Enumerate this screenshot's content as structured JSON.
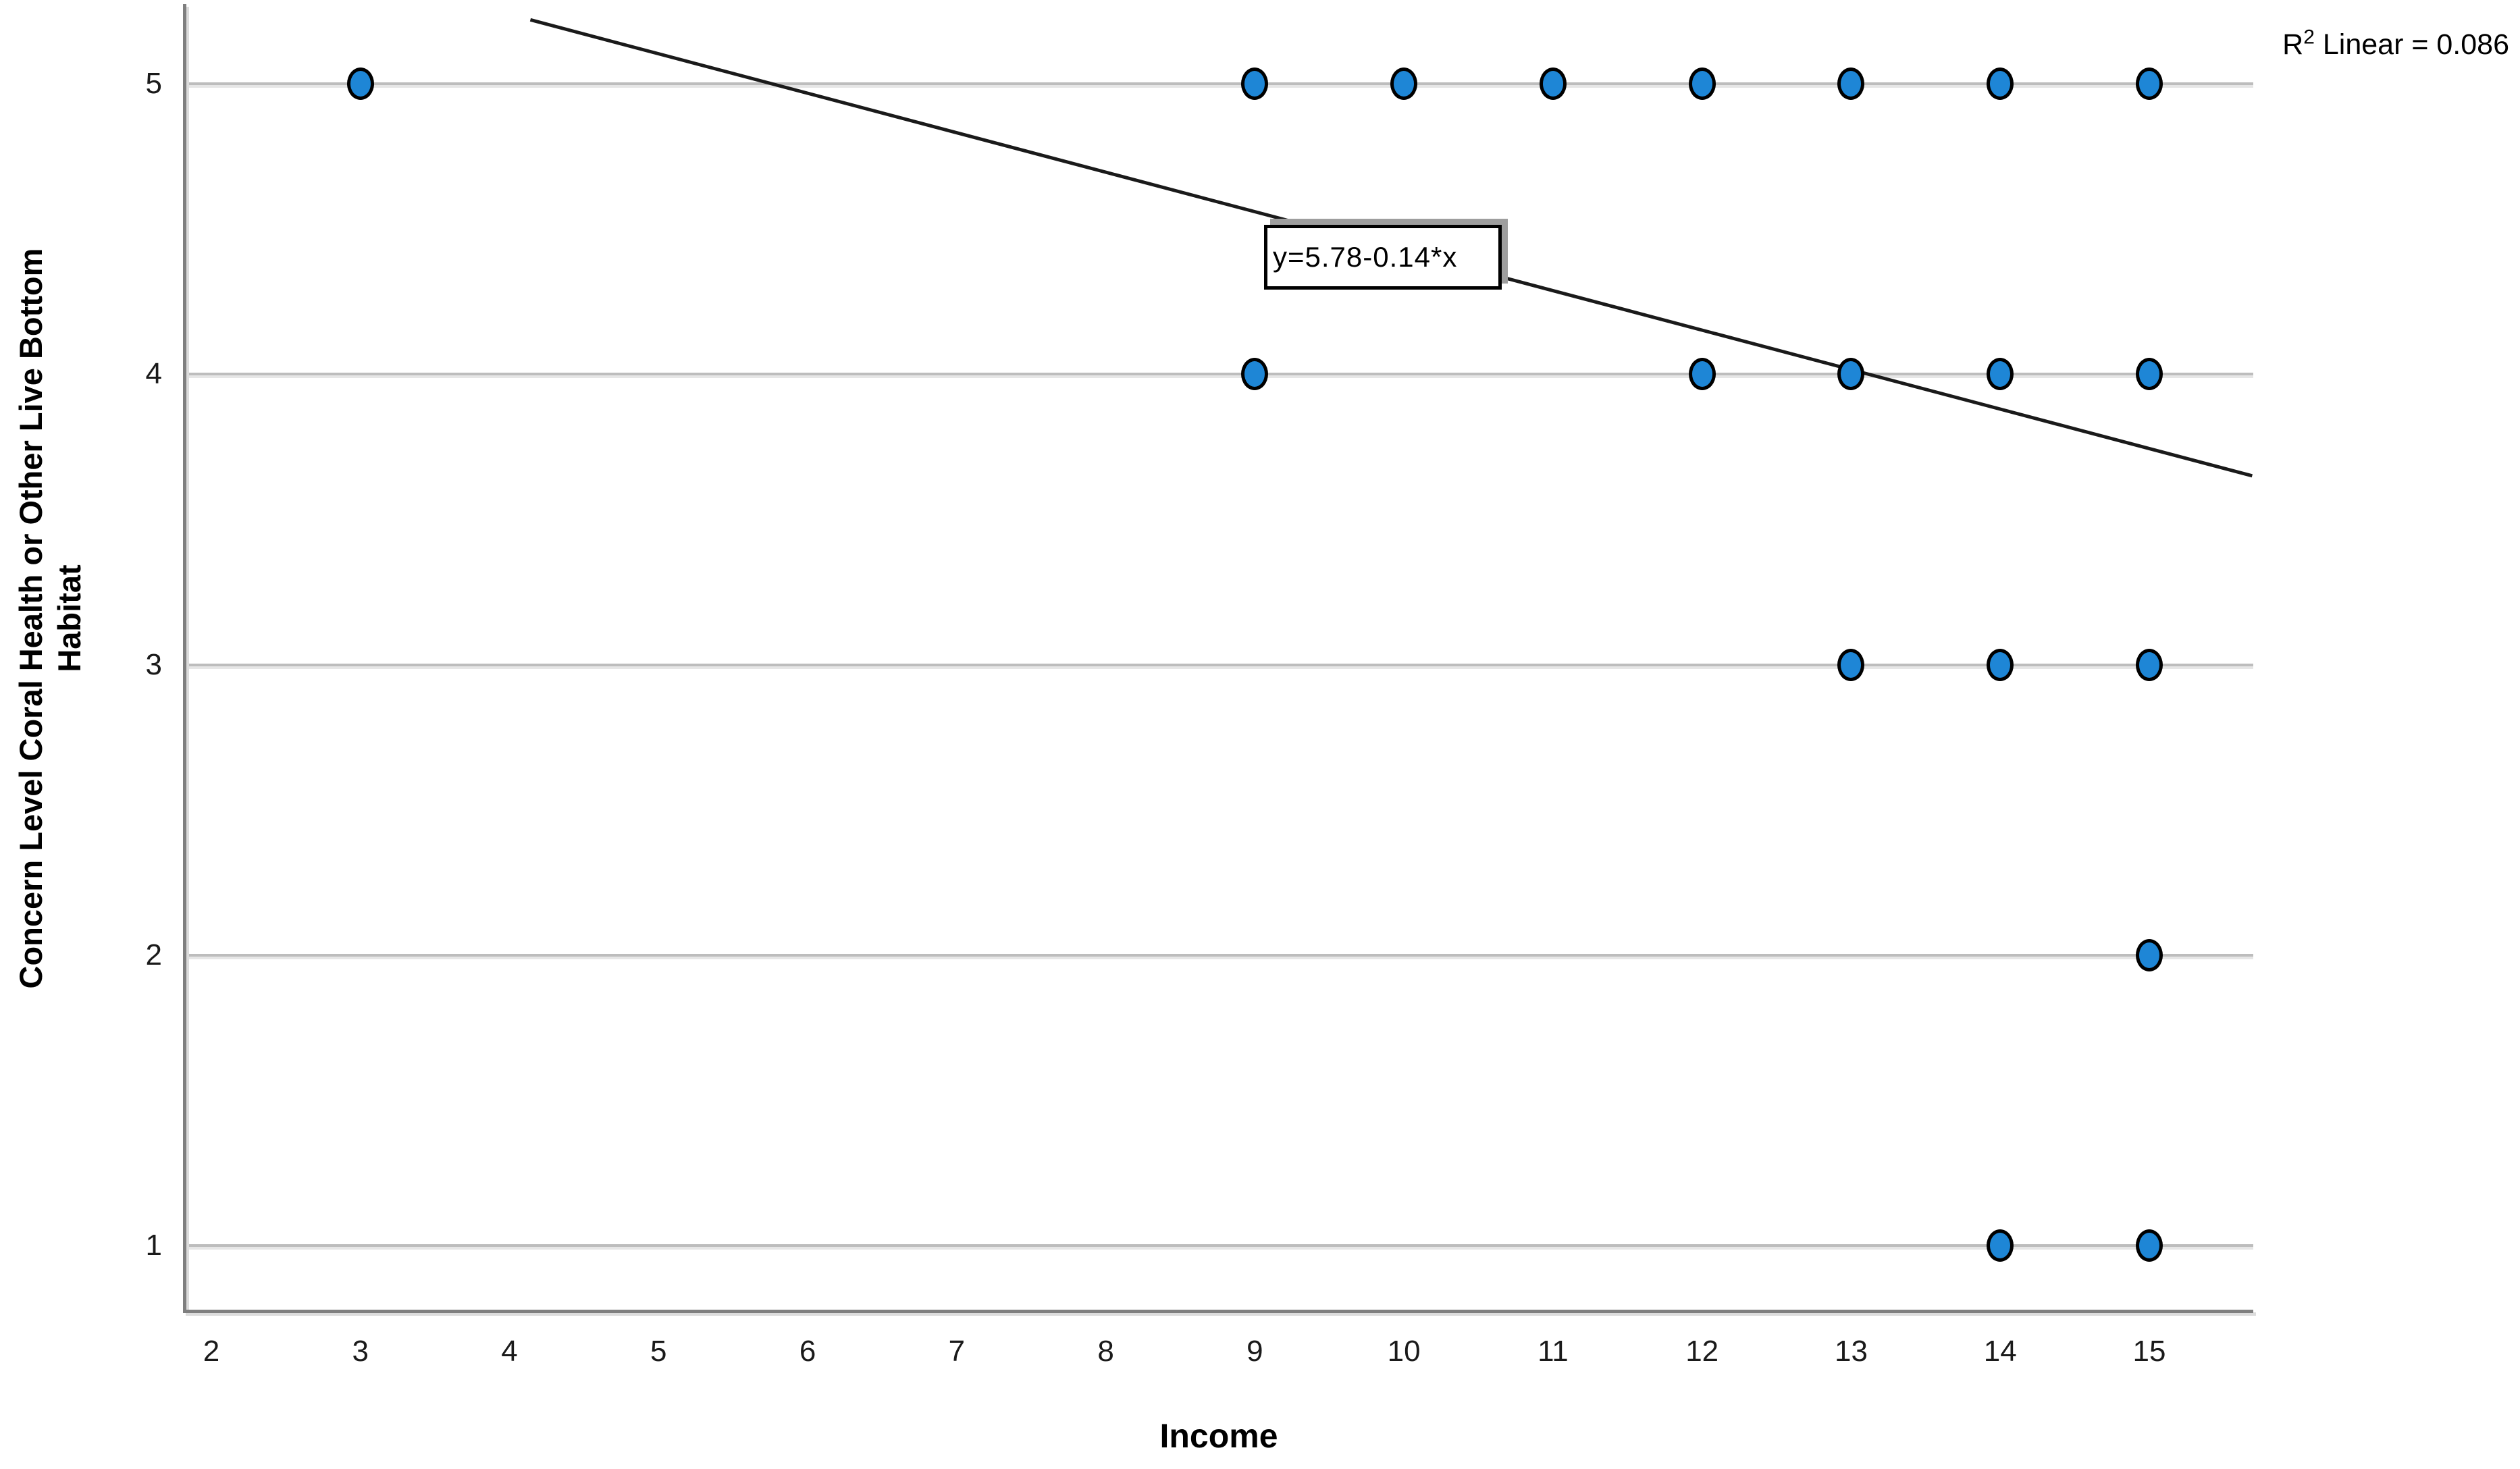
{
  "chart_data": {
    "type": "scatter",
    "title": "",
    "xlabel": "Income",
    "ylabel": "Concern Level Coral Health or Other Live Bottom Habitat",
    "ylabel_lines": [
      "Concern Level Coral Health or Other Live Bottom",
      "Habitat"
    ],
    "x_ticks": [
      2,
      3,
      4,
      5,
      6,
      7,
      8,
      9,
      10,
      11,
      12,
      13,
      14,
      15
    ],
    "y_ticks": [
      1,
      2,
      3,
      4,
      5
    ],
    "xlim": [
      1.8,
      15.7
    ],
    "ylim": [
      0.78,
      5.29
    ],
    "grid": "horizontal-only",
    "legend": "none",
    "points": [
      {
        "x": 3,
        "y": 5
      },
      {
        "x": 9,
        "y": 5
      },
      {
        "x": 10,
        "y": 5
      },
      {
        "x": 11,
        "y": 5
      },
      {
        "x": 12,
        "y": 5
      },
      {
        "x": 13,
        "y": 5
      },
      {
        "x": 14,
        "y": 5
      },
      {
        "x": 15,
        "y": 5
      },
      {
        "x": 9,
        "y": 4
      },
      {
        "x": 12,
        "y": 4
      },
      {
        "x": 13,
        "y": 4
      },
      {
        "x": 14,
        "y": 4
      },
      {
        "x": 15,
        "y": 4
      },
      {
        "x": 13,
        "y": 3
      },
      {
        "x": 14,
        "y": 3
      },
      {
        "x": 15,
        "y": 3
      },
      {
        "x": 15,
        "y": 2
      },
      {
        "x": 14,
        "y": 1
      },
      {
        "x": 15,
        "y": 1
      }
    ],
    "regression": {
      "equation": "y=5.78-0.14*x",
      "intercept": 5.78,
      "slope": -0.14,
      "line_start": {
        "x": 4.14,
        "y": 5.22
      },
      "line_end": {
        "x": 15.69,
        "y": 3.65
      }
    },
    "r_squared": {
      "prefix": "R",
      "sup": "2",
      "rest": " Linear = 0.086",
      "value": 0.086
    },
    "colors": {
      "point_fill": "#1E86D6",
      "point_stroke": "#000000",
      "gridline": "#bdbdbd",
      "axis": "#7f7f7f",
      "regression_line": "#1a1a1a",
      "equation_box_bg": "#ffffff",
      "equation_box_border": "#000000",
      "equation_box_shadow": "#9e9e9e",
      "text": "#000000"
    }
  }
}
